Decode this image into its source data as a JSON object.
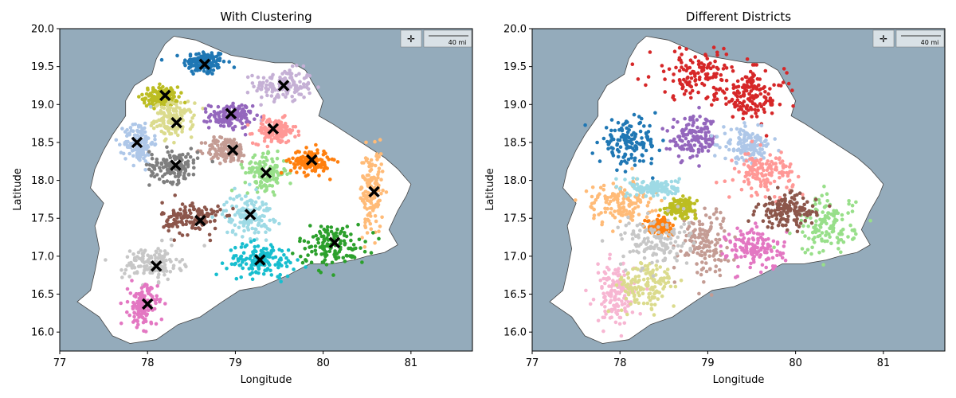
{
  "chart_data": [
    {
      "type": "scatter",
      "title": "With Clustering",
      "xlabel": "Longitude",
      "ylabel": "Latitude",
      "xlim": [
        77.0,
        81.7
      ],
      "ylim": [
        15.75,
        20.0
      ],
      "xticks": [
        77,
        78,
        79,
        80,
        81
      ],
      "xtick_labels": [
        "77",
        "78",
        "79",
        "80",
        "81"
      ],
      "yticks": [
        16.0,
        16.5,
        17.0,
        17.5,
        18.0,
        18.5,
        19.0,
        19.5,
        20.0
      ],
      "ytick_labels": [
        "16.0",
        "16.5",
        "17.0",
        "17.5",
        "18.0",
        "18.5",
        "19.0",
        "19.5",
        "20.0"
      ],
      "background": "basemap",
      "scale_bar_label": "40 mi",
      "grid": false,
      "groups": [
        {
          "color": "#1f77b4",
          "center": [
            78.65,
            19.55
          ],
          "spread": [
            0.22,
            0.15
          ]
        },
        {
          "color": "#c5b0d5",
          "center": [
            79.55,
            19.25
          ],
          "spread": [
            0.3,
            0.2
          ]
        },
        {
          "color": "#bcbd22",
          "center": [
            78.15,
            19.1
          ],
          "spread": [
            0.18,
            0.12
          ]
        },
        {
          "color": "#dbdb8d",
          "center": [
            78.3,
            18.8
          ],
          "spread": [
            0.2,
            0.2
          ]
        },
        {
          "color": "#9467bd",
          "center": [
            78.95,
            18.85
          ],
          "spread": [
            0.22,
            0.15
          ]
        },
        {
          "color": "#ff9896",
          "center": [
            79.45,
            18.65
          ],
          "spread": [
            0.22,
            0.15
          ]
        },
        {
          "color": "#aec7e8",
          "center": [
            77.9,
            18.5
          ],
          "spread": [
            0.15,
            0.25
          ]
        },
        {
          "color": "#c49c94",
          "center": [
            78.9,
            18.4
          ],
          "spread": [
            0.22,
            0.15
          ]
        },
        {
          "color": "#7f7f7f",
          "center": [
            78.3,
            18.2
          ],
          "spread": [
            0.25,
            0.2
          ]
        },
        {
          "color": "#98df8a",
          "center": [
            79.35,
            18.1
          ],
          "spread": [
            0.22,
            0.2
          ]
        },
        {
          "color": "#ff7f0e",
          "center": [
            79.85,
            18.25
          ],
          "spread": [
            0.2,
            0.15
          ]
        },
        {
          "color": "#ffbb78",
          "center": [
            80.55,
            17.85
          ],
          "spread": [
            0.12,
            0.5
          ]
        },
        {
          "color": "#9edae5",
          "center": [
            79.15,
            17.55
          ],
          "spread": [
            0.25,
            0.25
          ]
        },
        {
          "color": "#8c564b",
          "center": [
            78.5,
            17.5
          ],
          "spread": [
            0.3,
            0.2
          ]
        },
        {
          "color": "#2ca02c",
          "center": [
            80.1,
            17.15
          ],
          "spread": [
            0.35,
            0.25
          ]
        },
        {
          "color": "#17becf",
          "center": [
            79.3,
            16.95
          ],
          "spread": [
            0.35,
            0.2
          ]
        },
        {
          "color": "#c7c7c7",
          "center": [
            78.05,
            16.9
          ],
          "spread": [
            0.3,
            0.2
          ]
        },
        {
          "color": "#e377c2",
          "center": [
            77.95,
            16.35
          ],
          "spread": [
            0.15,
            0.25
          ]
        }
      ],
      "centroids": [
        [
          78.65,
          19.53
        ],
        [
          79.55,
          19.25
        ],
        [
          78.2,
          19.12
        ],
        [
          78.95,
          18.88
        ],
        [
          78.33,
          18.76
        ],
        [
          79.43,
          18.68
        ],
        [
          77.88,
          18.5
        ],
        [
          78.97,
          18.4
        ],
        [
          78.32,
          18.2
        ],
        [
          79.35,
          18.1
        ],
        [
          79.87,
          18.27
        ],
        [
          80.58,
          17.85
        ],
        [
          79.17,
          17.55
        ],
        [
          78.6,
          17.47
        ],
        [
          80.13,
          17.18
        ],
        [
          79.28,
          16.95
        ],
        [
          78.1,
          16.87
        ],
        [
          78.0,
          16.37
        ]
      ]
    },
    {
      "type": "scatter",
      "title": "Different Districts",
      "xlabel": "Longitude",
      "ylabel": "Latitude",
      "xlim": [
        77.0,
        81.7
      ],
      "ylim": [
        15.75,
        20.0
      ],
      "xticks": [
        77,
        78,
        79,
        80,
        81
      ],
      "xtick_labels": [
        "77",
        "78",
        "79",
        "80",
        "81"
      ],
      "yticks": [
        16.0,
        16.5,
        17.0,
        17.5,
        18.0,
        18.5,
        19.0,
        19.5,
        20.0
      ],
      "ytick_labels": [
        "16.0",
        "16.5",
        "17.0",
        "17.5",
        "18.0",
        "18.5",
        "19.0",
        "19.5",
        "20.0"
      ],
      "background": "basemap",
      "scale_bar_label": "40 mi",
      "grid": false,
      "groups": [
        {
          "color": "#d62728",
          "center": [
            78.9,
            19.4
          ],
          "spread": [
            0.5,
            0.3
          ]
        },
        {
          "color": "#d62728",
          "center": [
            79.5,
            19.1
          ],
          "spread": [
            0.35,
            0.3
          ]
        },
        {
          "color": "#1f77b4",
          "center": [
            78.1,
            18.5
          ],
          "spread": [
            0.3,
            0.25
          ]
        },
        {
          "color": "#9467bd",
          "center": [
            78.85,
            18.55
          ],
          "spread": [
            0.25,
            0.25
          ]
        },
        {
          "color": "#aec7e8",
          "center": [
            79.45,
            18.45
          ],
          "spread": [
            0.25,
            0.2
          ]
        },
        {
          "color": "#ff9896",
          "center": [
            79.65,
            18.1
          ],
          "spread": [
            0.3,
            0.25
          ]
        },
        {
          "color": "#c49c94",
          "center": [
            78.95,
            17.2
          ],
          "spread": [
            0.25,
            0.4
          ]
        },
        {
          "color": "#e377c2",
          "center": [
            79.55,
            17.1
          ],
          "spread": [
            0.3,
            0.25
          ]
        },
        {
          "color": "#98df8a",
          "center": [
            80.35,
            17.4
          ],
          "spread": [
            0.3,
            0.35
          ]
        },
        {
          "color": "#8c564b",
          "center": [
            79.9,
            17.6
          ],
          "spread": [
            0.3,
            0.2
          ]
        },
        {
          "color": "#f7b6d2",
          "center": [
            77.95,
            16.5
          ],
          "spread": [
            0.2,
            0.35
          ]
        },
        {
          "color": "#dbdb8d",
          "center": [
            78.3,
            16.6
          ],
          "spread": [
            0.3,
            0.3
          ]
        },
        {
          "color": "#ff7f0e",
          "center": [
            78.45,
            17.4
          ],
          "spread": [
            0.12,
            0.08
          ]
        },
        {
          "color": "#bcbd22",
          "center": [
            78.7,
            17.65
          ],
          "spread": [
            0.15,
            0.1
          ]
        },
        {
          "color": "#ffbb78",
          "center": [
            78.0,
            17.7
          ],
          "spread": [
            0.35,
            0.25
          ]
        },
        {
          "color": "#c7c7c7",
          "center": [
            78.4,
            17.2
          ],
          "spread": [
            0.35,
            0.3
          ]
        },
        {
          "color": "#9edae5",
          "center": [
            78.4,
            17.9
          ],
          "spread": [
            0.25,
            0.1
          ]
        }
      ]
    }
  ]
}
